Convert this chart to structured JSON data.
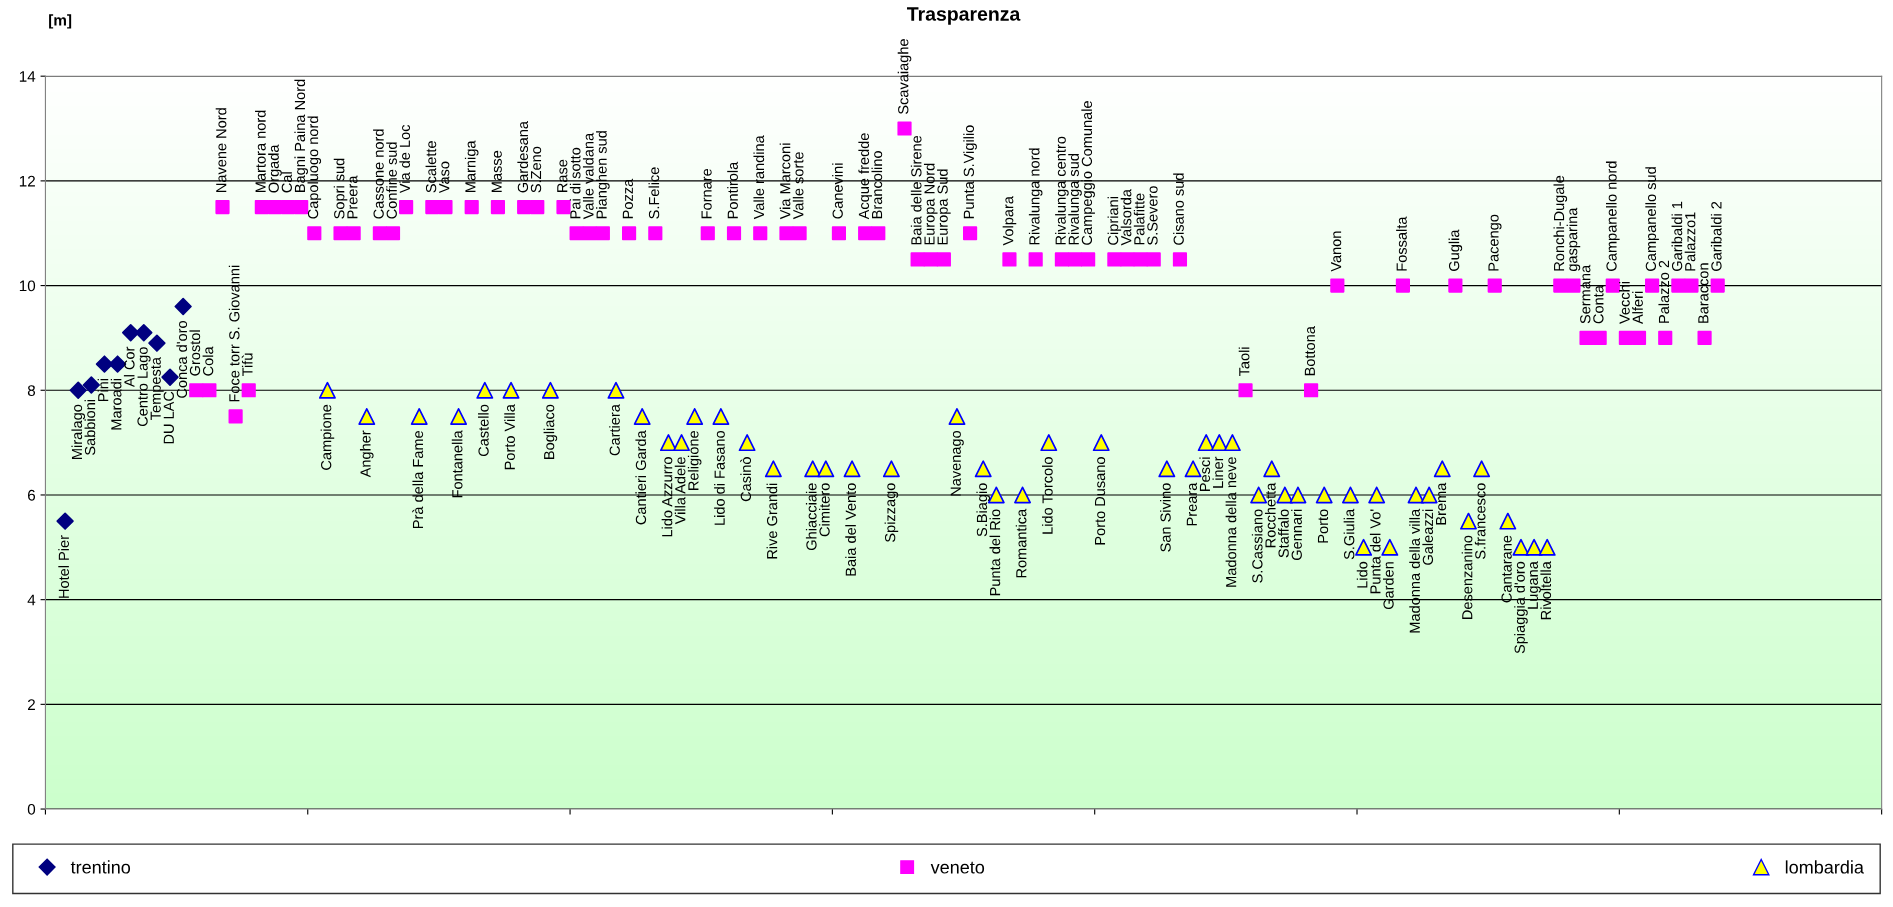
{
  "chart_data": {
    "type": "scatter",
    "title": "Trasparenza",
    "ylabel": "[m]",
    "categories": [
      null,
      "Hotel Pier",
      "Miralago",
      "Sabbioni",
      "Pini",
      "Maroadi",
      "Al Cor",
      "Centro Lago",
      "Tempesta",
      "DU LAC",
      "Conca d'oro",
      "Grostol",
      "Cola",
      "Navene Nord",
      "Foce torr S. Giovanni",
      "Tifù",
      "Martora nord",
      "Orgada",
      "Cal",
      "Bagni Paina Nord",
      "Capoluogo nord",
      "Campione",
      "Sopri sud",
      "Preera",
      "Angher",
      "Cassone nord",
      "Confine sud",
      "Via de Loc",
      "Prà della Fame",
      "Scalette",
      "Vaso",
      "Fontanella",
      "Marniga",
      "Castello",
      "Masse",
      "Porto Villa",
      "Gardesana",
      "S.Zeno",
      "Bogliaco",
      "Rase",
      "Pai di sotto",
      "Valle valdana",
      "Pianghen sud",
      "Cartiera",
      "Pozza",
      "Cantieri Garda",
      "S.Felice",
      "Lido Azzurro",
      "Villa Adele",
      "Religione",
      "Fornare",
      "Lido di Fasano",
      "Pontirola",
      "Casinò",
      "Valle randina",
      "Rive Grandi",
      "Via Marconi",
      "Valle sorte",
      "Ghiacciaie",
      "Cimitero",
      "Canevini",
      "Baia del Vento",
      "Acque fredde",
      "Brancolino",
      "Spizzago",
      "Scavaiaghe",
      "Baia delle Sirene",
      "Europa Nord",
      "Europa Sud",
      "Navenago",
      "Punta S.Vigilio",
      "S.Biagio",
      "Punta del Rio",
      "Volpara",
      "Romantica",
      "Rivalunga nord",
      "Lido Torcolo",
      "Rivalunga centro",
      "Rivalunga sud",
      "Campeggio Comunale",
      "Porto Dusano",
      "Cipriani",
      "Valsorda",
      "Palafitte",
      "S.Severo",
      "San Sivino",
      "Cisano sud",
      "Preara",
      "Pesci",
      "Liner",
      "Madonna della neve",
      "Taoli",
      "S.Cassiano",
      "Rocchetta",
      "Staffalo",
      "Gennari",
      "Bottona",
      "Porto",
      "Vanon",
      "S.Giulia",
      "Lido",
      "Punta del Vo'",
      "Garden",
      "Fossalta",
      "Madonna della villa",
      "Galeazzi",
      "Brema",
      "Guglia",
      "Desenzanino",
      "S.francesco",
      "Pacengo",
      "Cantarane",
      "Spiaggia d'oro",
      "Lugana",
      "Rivoltella",
      "Ronchi-Dugale",
      "gasparina",
      "Sermana",
      "Conta",
      "Campanello nord",
      "Vecchi",
      "Alferi",
      "Campanello sud",
      "Palazzo 2",
      "Garibaldi 1",
      "Palazzo1",
      "Baraccon",
      "Garibaldi 2",
      null,
      null,
      null,
      null,
      null,
      null,
      null,
      null,
      null,
      null,
      null,
      null
    ],
    "ylim": [
      0,
      14
    ],
    "yticks": [
      0,
      2,
      4,
      6,
      8,
      10,
      12,
      14
    ],
    "grid": "y",
    "legend": "bottom",
    "series": [
      {
        "name": "trentino",
        "color": "#000080",
        "marker": "diamond",
        "values": [
          null,
          5.5,
          8,
          8.1,
          8.5,
          8.5,
          9.1,
          9.1,
          8.9,
          8.25,
          9.6,
          null,
          null,
          null,
          null,
          null,
          null,
          null,
          null,
          null,
          null,
          null,
          null,
          null,
          null,
          null,
          null,
          null,
          null,
          null,
          null,
          null,
          null,
          null,
          null,
          null,
          null,
          null,
          null,
          null,
          null,
          null,
          null,
          null,
          null,
          null,
          null,
          null,
          null,
          null,
          null,
          null,
          null,
          null,
          null,
          null,
          null,
          null,
          null,
          null,
          null,
          null,
          null,
          null,
          null,
          null,
          null,
          null,
          null,
          null,
          null,
          null,
          null,
          null,
          null,
          null,
          null,
          null,
          null,
          null,
          null,
          null,
          null,
          null,
          null,
          null,
          null,
          null,
          null,
          null,
          null,
          null,
          null,
          null,
          null,
          null,
          null,
          null,
          null,
          null,
          null,
          null,
          null,
          null,
          null,
          null,
          null,
          null,
          null,
          null,
          null,
          null,
          null,
          null,
          null,
          null,
          null,
          null,
          null,
          null,
          null,
          null,
          null,
          null,
          null,
          null,
          null,
          null,
          null,
          null,
          null,
          null,
          null,
          null,
          null,
          null,
          null,
          null,
          null,
          null
        ]
      },
      {
        "name": "veneto",
        "color": "#ff00ff",
        "marker": "square",
        "values": [
          null,
          null,
          null,
          null,
          null,
          null,
          null,
          null,
          null,
          null,
          null,
          8,
          8,
          11.5,
          7.5,
          8,
          11.5,
          11.5,
          11.5,
          11.5,
          11,
          null,
          11,
          11,
          null,
          11,
          11,
          11.5,
          null,
          11.5,
          11.5,
          null,
          11.5,
          null,
          11.5,
          null,
          11.5,
          11.5,
          null,
          11.5,
          11,
          11,
          11,
          null,
          11,
          null,
          11,
          null,
          null,
          null,
          11,
          null,
          11,
          null,
          11,
          null,
          11,
          11,
          null,
          null,
          11,
          null,
          11,
          11,
          null,
          13,
          10.5,
          10.5,
          10.5,
          null,
          11,
          null,
          null,
          10.5,
          null,
          10.5,
          null,
          10.5,
          10.5,
          10.5,
          null,
          10.5,
          10.5,
          10.5,
          10.5,
          null,
          10.5,
          null,
          null,
          null,
          null,
          8,
          null,
          null,
          null,
          null,
          8,
          null,
          10,
          null,
          null,
          null,
          null,
          10,
          null,
          null,
          null,
          10,
          null,
          null,
          10,
          null,
          null,
          null,
          null,
          10,
          10,
          9,
          9,
          10,
          9,
          9,
          10,
          9,
          10,
          10,
          9,
          10,
          null,
          null,
          null,
          null,
          null,
          null,
          null,
          null,
          null,
          null,
          null,
          null
        ]
      },
      {
        "name": "lombardia",
        "color": "#ffff00",
        "marker": "triangle",
        "values": [
          null,
          null,
          null,
          null,
          null,
          null,
          null,
          null,
          null,
          null,
          null,
          null,
          null,
          null,
          null,
          null,
          null,
          null,
          null,
          null,
          null,
          8,
          null,
          null,
          7.5,
          null,
          null,
          null,
          7.5,
          null,
          null,
          7.5,
          null,
          8,
          null,
          8,
          null,
          null,
          8,
          null,
          null,
          null,
          null,
          8,
          null,
          7.5,
          null,
          7,
          7,
          7.5,
          null,
          7.5,
          null,
          7,
          null,
          6.5,
          null,
          null,
          6.5,
          6.5,
          null,
          6.5,
          null,
          null,
          6.5,
          null,
          null,
          null,
          null,
          7.5,
          null,
          6.5,
          6,
          null,
          6,
          null,
          7,
          null,
          null,
          null,
          7,
          null,
          null,
          null,
          null,
          6.5,
          null,
          6.5,
          7,
          7,
          7,
          null,
          6,
          6.5,
          6,
          6,
          null,
          6,
          null,
          6,
          5,
          6,
          5,
          null,
          6,
          6,
          6.5,
          null,
          5.5,
          6.5,
          null,
          5.5,
          5,
          5,
          5,
          null,
          null,
          null,
          null,
          null,
          null,
          null,
          null,
          null,
          null,
          null,
          null,
          null,
          null,
          null,
          null,
          null,
          null,
          null,
          null,
          null,
          null,
          null,
          null,
          null
        ]
      }
    ]
  }
}
